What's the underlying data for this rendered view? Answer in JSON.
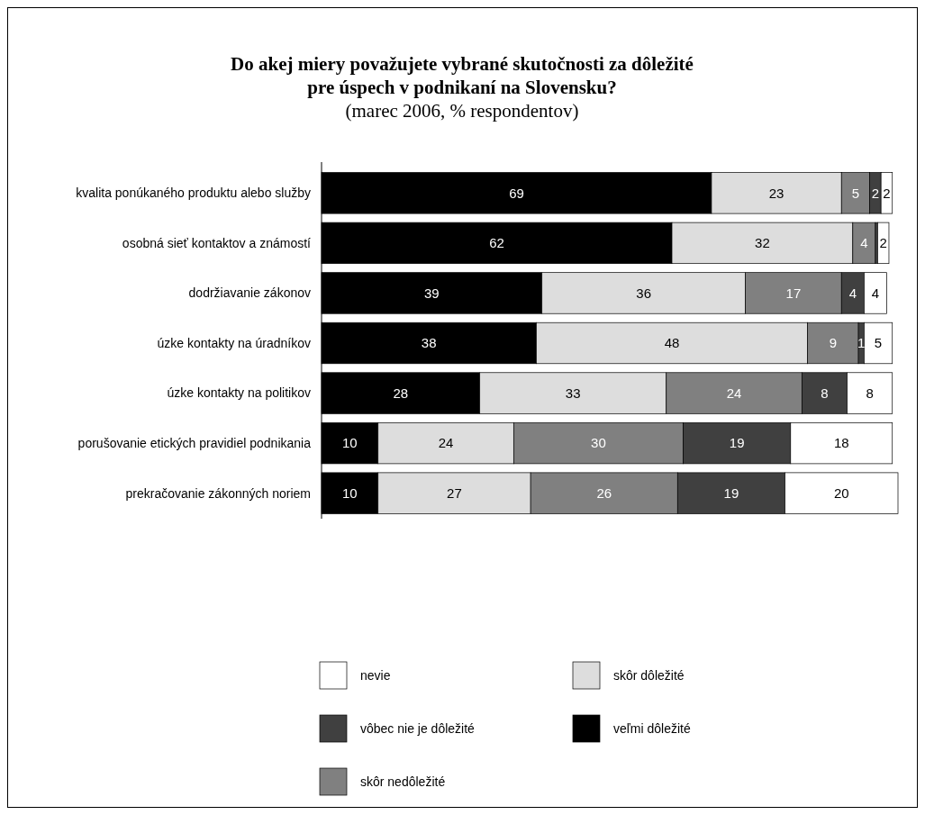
{
  "chart_data": {
    "type": "bar",
    "orientation": "horizontal",
    "stacked": true,
    "title": "Do akej miery považujete vybrané skutočnosti za dôležité\npre úspech v podnikaní na Slovensku?",
    "subtitle": "(marec 2006, % respondentov)",
    "categories": [
      "kvalita ponúkaného produktu alebo služby",
      "osobná sieť kontaktov a známostí",
      "dodržiavanie zákonov",
      "úzke kontakty na úradníkov",
      "úzke kontakty na politikov",
      "porušovanie etických pravidiel podnikania",
      "prekračovanie zákonných noriem"
    ],
    "series": [
      {
        "name": "veľmi dôležité",
        "color": "#000000",
        "values": [
          69,
          62,
          39,
          38,
          28,
          10,
          10
        ],
        "value_labels": [
          "69",
          "62",
          "39",
          "38",
          "28",
          "10",
          "10"
        ]
      },
      {
        "name": "skôr dôležité",
        "color": "#dddddd",
        "values": [
          23,
          32,
          36,
          48,
          33,
          24,
          27
        ],
        "value_labels": [
          "23",
          "32",
          "36",
          "48",
          "33",
          "24",
          "27"
        ]
      },
      {
        "name": "skôr nedôležité",
        "color": "#808080",
        "values": [
          5,
          4,
          17,
          9,
          24,
          30,
          26
        ],
        "value_labels": [
          "5",
          "4",
          "17",
          "9",
          "24",
          "30",
          "26"
        ]
      },
      {
        "name": "vôbec nie je dôležité",
        "color": "#404040",
        "values": [
          2,
          0.4,
          4,
          1,
          8,
          19,
          19
        ],
        "value_labels": [
          "2",
          null,
          "4",
          "1",
          "8",
          "19",
          "19"
        ]
      },
      {
        "name": "nevie",
        "color": "#ffffff",
        "values": [
          2,
          2,
          4,
          5,
          8,
          18,
          20
        ],
        "value_labels": [
          "2",
          "2",
          "4",
          "5",
          "8",
          "18",
          "20"
        ]
      }
    ],
    "legend": "bottom"
  }
}
